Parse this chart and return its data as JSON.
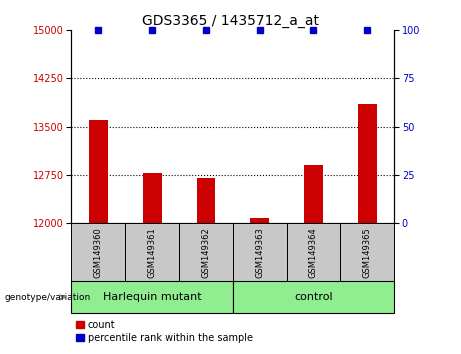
{
  "title": "GDS3365 / 1435712_a_at",
  "samples": [
    "GSM149360",
    "GSM149361",
    "GSM149362",
    "GSM149363",
    "GSM149364",
    "GSM149365"
  ],
  "counts": [
    13600,
    12780,
    12700,
    12080,
    12900,
    13850
  ],
  "percentile_ranks": [
    100,
    100,
    100,
    100,
    100,
    100
  ],
  "group_labels": [
    "Harlequin mutant",
    "control"
  ],
  "ylim_left": [
    12000,
    15000
  ],
  "yticks_left": [
    12000,
    12750,
    13500,
    14250,
    15000
  ],
  "ylim_right": [
    0,
    100
  ],
  "yticks_right": [
    0,
    25,
    50,
    75,
    100
  ],
  "bar_color": "#cc0000",
  "scatter_color": "#0000cc",
  "bar_width": 0.35,
  "grid_lines": [
    12750,
    13500,
    14250
  ],
  "background_plot": "#ffffff",
  "background_label": "#c8c8c8",
  "background_group": "#90ee90",
  "label_color_left": "#cc0000",
  "label_color_right": "#0000cc",
  "genotype_label": "genotype/variation",
  "legend_count_label": "count",
  "legend_pct_label": "percentile rank within the sample",
  "title_fontsize": 10,
  "tick_fontsize": 7,
  "sample_fontsize": 6,
  "group_fontsize": 8,
  "legend_fontsize": 7
}
